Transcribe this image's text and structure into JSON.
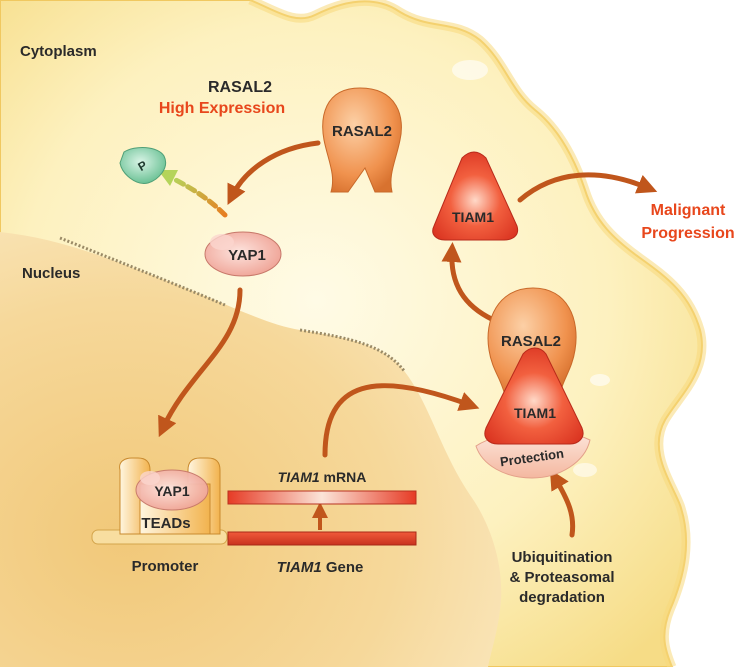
{
  "compartments": {
    "cytoplasm": "Cytoplasm",
    "nucleus": "Nucleus"
  },
  "header": {
    "line1": "RASAL2",
    "line2": "High Expression"
  },
  "molecules": {
    "rasal2_top": "RASAL2",
    "phosphate": "P",
    "yap1_top": "YAP1",
    "tiam1_top": "TIAM1",
    "rasal2_complex": "RASAL2",
    "tiam1_complex": "TIAM1",
    "protection": "Protection",
    "yap1_promoter": "YAP1",
    "teads": "TEADs"
  },
  "gene": {
    "mrna_italic": "TIAM1",
    "mrna_rest": " mRNA",
    "gene_italic": "TIAM1",
    "gene_rest": " Gene",
    "promoter": "Promoter"
  },
  "outcomes": {
    "malignant_line1": "Malignant",
    "malignant_line2": "Progression",
    "ubiq_line1": "Ubiquitination",
    "ubiq_line2": "& Proteasomal",
    "ubiq_line3": "degradation"
  },
  "colors": {
    "arrow": "#c0561c",
    "accent_text": "#e8471c",
    "cytoplasm_fill": "#fbefb6",
    "nucleus_fill": "#f0c46b",
    "tiam1_fill": "#e8402a",
    "rasal2_fill": "#f09a5c",
    "yap1_fill": "#f4b3a8",
    "phosphate_fill": "#8fd4b0"
  }
}
